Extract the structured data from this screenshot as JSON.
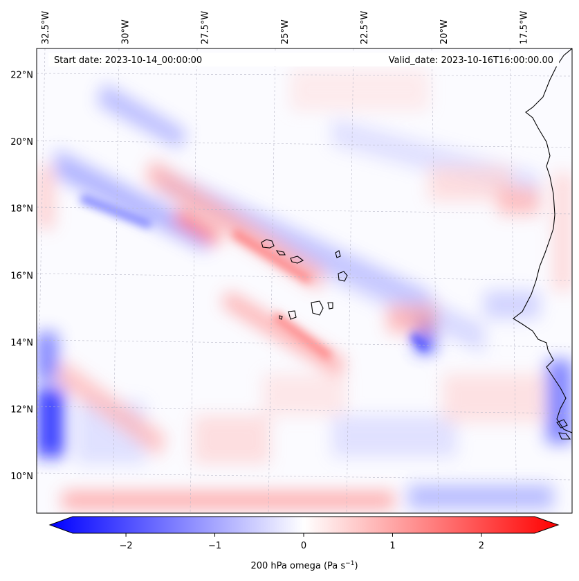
{
  "header": {
    "start_date": "Start date: 2023-10-14_00:00:00",
    "valid_date": "Valid_date: 2023-10-16T16:00:00.00"
  },
  "map": {
    "lon_ticks": [
      {
        "value": -32.5,
        "label": "32.5°W"
      },
      {
        "value": -30,
        "label": "30°W"
      },
      {
        "value": -27.5,
        "label": "27.5°W"
      },
      {
        "value": -25,
        "label": "25°W"
      },
      {
        "value": -22.5,
        "label": "22.5°W"
      },
      {
        "value": -20,
        "label": "20°W"
      },
      {
        "value": -17.5,
        "label": "17.5°W"
      }
    ],
    "lat_ticks": [
      {
        "value": 22,
        "label": "22°N"
      },
      {
        "value": 20,
        "label": "20°N"
      },
      {
        "value": 18,
        "label": "18°N"
      },
      {
        "value": 16,
        "label": "16°N"
      },
      {
        "value": 14,
        "label": "14°N"
      },
      {
        "value": 12,
        "label": "12°N"
      },
      {
        "value": 10,
        "label": "10°N"
      }
    ],
    "extent": {
      "lon_min": -32.7,
      "lon_max": -15.9,
      "lat_min": 8.9,
      "lat_max": 22.8
    },
    "colors": {
      "negative": "#0000ff",
      "zero": "#ffffff",
      "positive": "#ff0000"
    }
  },
  "colorbar": {
    "label_main": "200 hPa omega (Pa s",
    "label_exp": "−1",
    "label_close": ")",
    "range": [
      -2.6,
      2.6
    ],
    "ticks": [
      {
        "value": -2,
        "label": "−2"
      },
      {
        "value": -1,
        "label": "−1"
      },
      {
        "value": 0,
        "label": "0"
      },
      {
        "value": 1,
        "label": "1"
      },
      {
        "value": 2,
        "label": "2"
      }
    ]
  }
}
